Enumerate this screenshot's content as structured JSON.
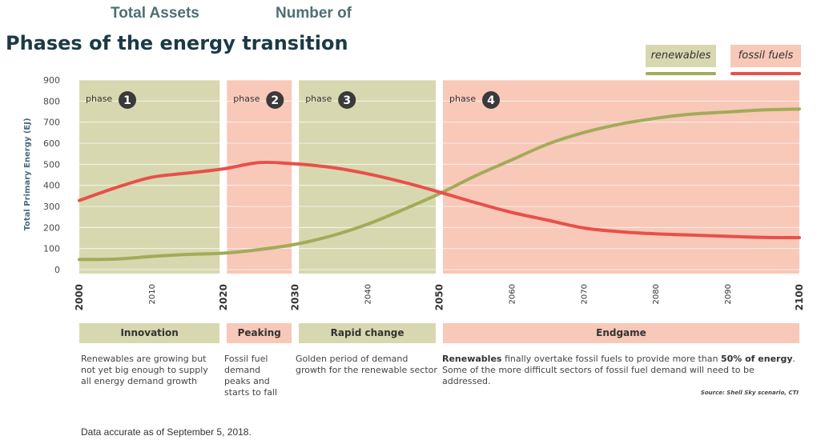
{
  "header": {
    "total_assets_label": "Total Assets",
    "number_of_label": "Number of",
    "title": "Phases of the energy transition"
  },
  "legend": [
    {
      "label": "renewables",
      "box_color": "#d8d8b0",
      "line_color": "#a2ab58"
    },
    {
      "label": "fossil fuels",
      "box_color": "#f8c8b8",
      "line_color": "#e8504a"
    }
  ],
  "chart_data": {
    "type": "line",
    "title": "Phases of the energy transition",
    "ylabel": "Total Primary Energy (EJ)",
    "xlabel": "",
    "xlim": [
      2000,
      2100
    ],
    "ylim": [
      0,
      900
    ],
    "y_ticks": [
      0,
      100,
      200,
      300,
      400,
      500,
      600,
      700,
      800,
      900
    ],
    "x_ticks": [
      2000,
      2010,
      2020,
      2030,
      2040,
      2050,
      2060,
      2070,
      2080,
      2090,
      2100
    ],
    "bold_x_ticks": [
      2000,
      2020,
      2030,
      2050,
      2100
    ],
    "grid": true,
    "legend_position": "top-right",
    "series": [
      {
        "name": "renewables",
        "color": "#a2ab58",
        "x": [
          2000,
          2005,
          2010,
          2015,
          2020,
          2025,
          2030,
          2035,
          2040,
          2045,
          2050,
          2055,
          2060,
          2065,
          2070,
          2075,
          2080,
          2085,
          2090,
          2095,
          2100
        ],
        "y": [
          48,
          50,
          62,
          72,
          78,
          95,
          120,
          160,
          215,
          285,
          360,
          445,
          520,
          595,
          650,
          690,
          718,
          738,
          748,
          758,
          762
        ]
      },
      {
        "name": "fossil fuels",
        "color": "#e8504a",
        "x": [
          2000,
          2005,
          2010,
          2015,
          2020,
          2025,
          2030,
          2035,
          2040,
          2045,
          2050,
          2055,
          2060,
          2065,
          2070,
          2075,
          2080,
          2085,
          2090,
          2095,
          2100
        ],
        "y": [
          328,
          388,
          438,
          458,
          478,
          508,
          502,
          485,
          455,
          415,
          368,
          318,
          272,
          235,
          198,
          180,
          170,
          164,
          158,
          153,
          152
        ]
      }
    ],
    "phases": [
      {
        "number": "1",
        "prefix": "phase",
        "start": 2000,
        "end": 2019.5,
        "color": "#d8d8b0",
        "label": "Innovation",
        "description": "Renewables are growing but not yet big enough to supply all energy demand growth"
      },
      {
        "number": "2",
        "prefix": "phase",
        "start": 2020.5,
        "end": 2029.5,
        "color": "#f8c8b8",
        "label": "Peaking",
        "description": "Fossil fuel demand peaks and starts to fall"
      },
      {
        "number": "3",
        "prefix": "phase",
        "start": 2030.5,
        "end": 2049.5,
        "color": "#d8d8b0",
        "label": "Rapid change",
        "description": "Golden period of demand growth for the renewable sector"
      },
      {
        "number": "4",
        "prefix": "phase",
        "start": 2050.5,
        "end": 2100,
        "color": "#f8c8b8",
        "label": "Endgame",
        "description_bold_1": "Renewables",
        "description_part_1": " finally overtake fossil fuels to provide more than ",
        "description_bold_2": "50% of energy",
        "description_part_2": ". Some of the more difficult sectors of fossil fuel demand will need to be addressed."
      }
    ],
    "source": "Source: Shell Sky scenario, CTI"
  },
  "footnote": "Data accurate as of September 5, 2018."
}
